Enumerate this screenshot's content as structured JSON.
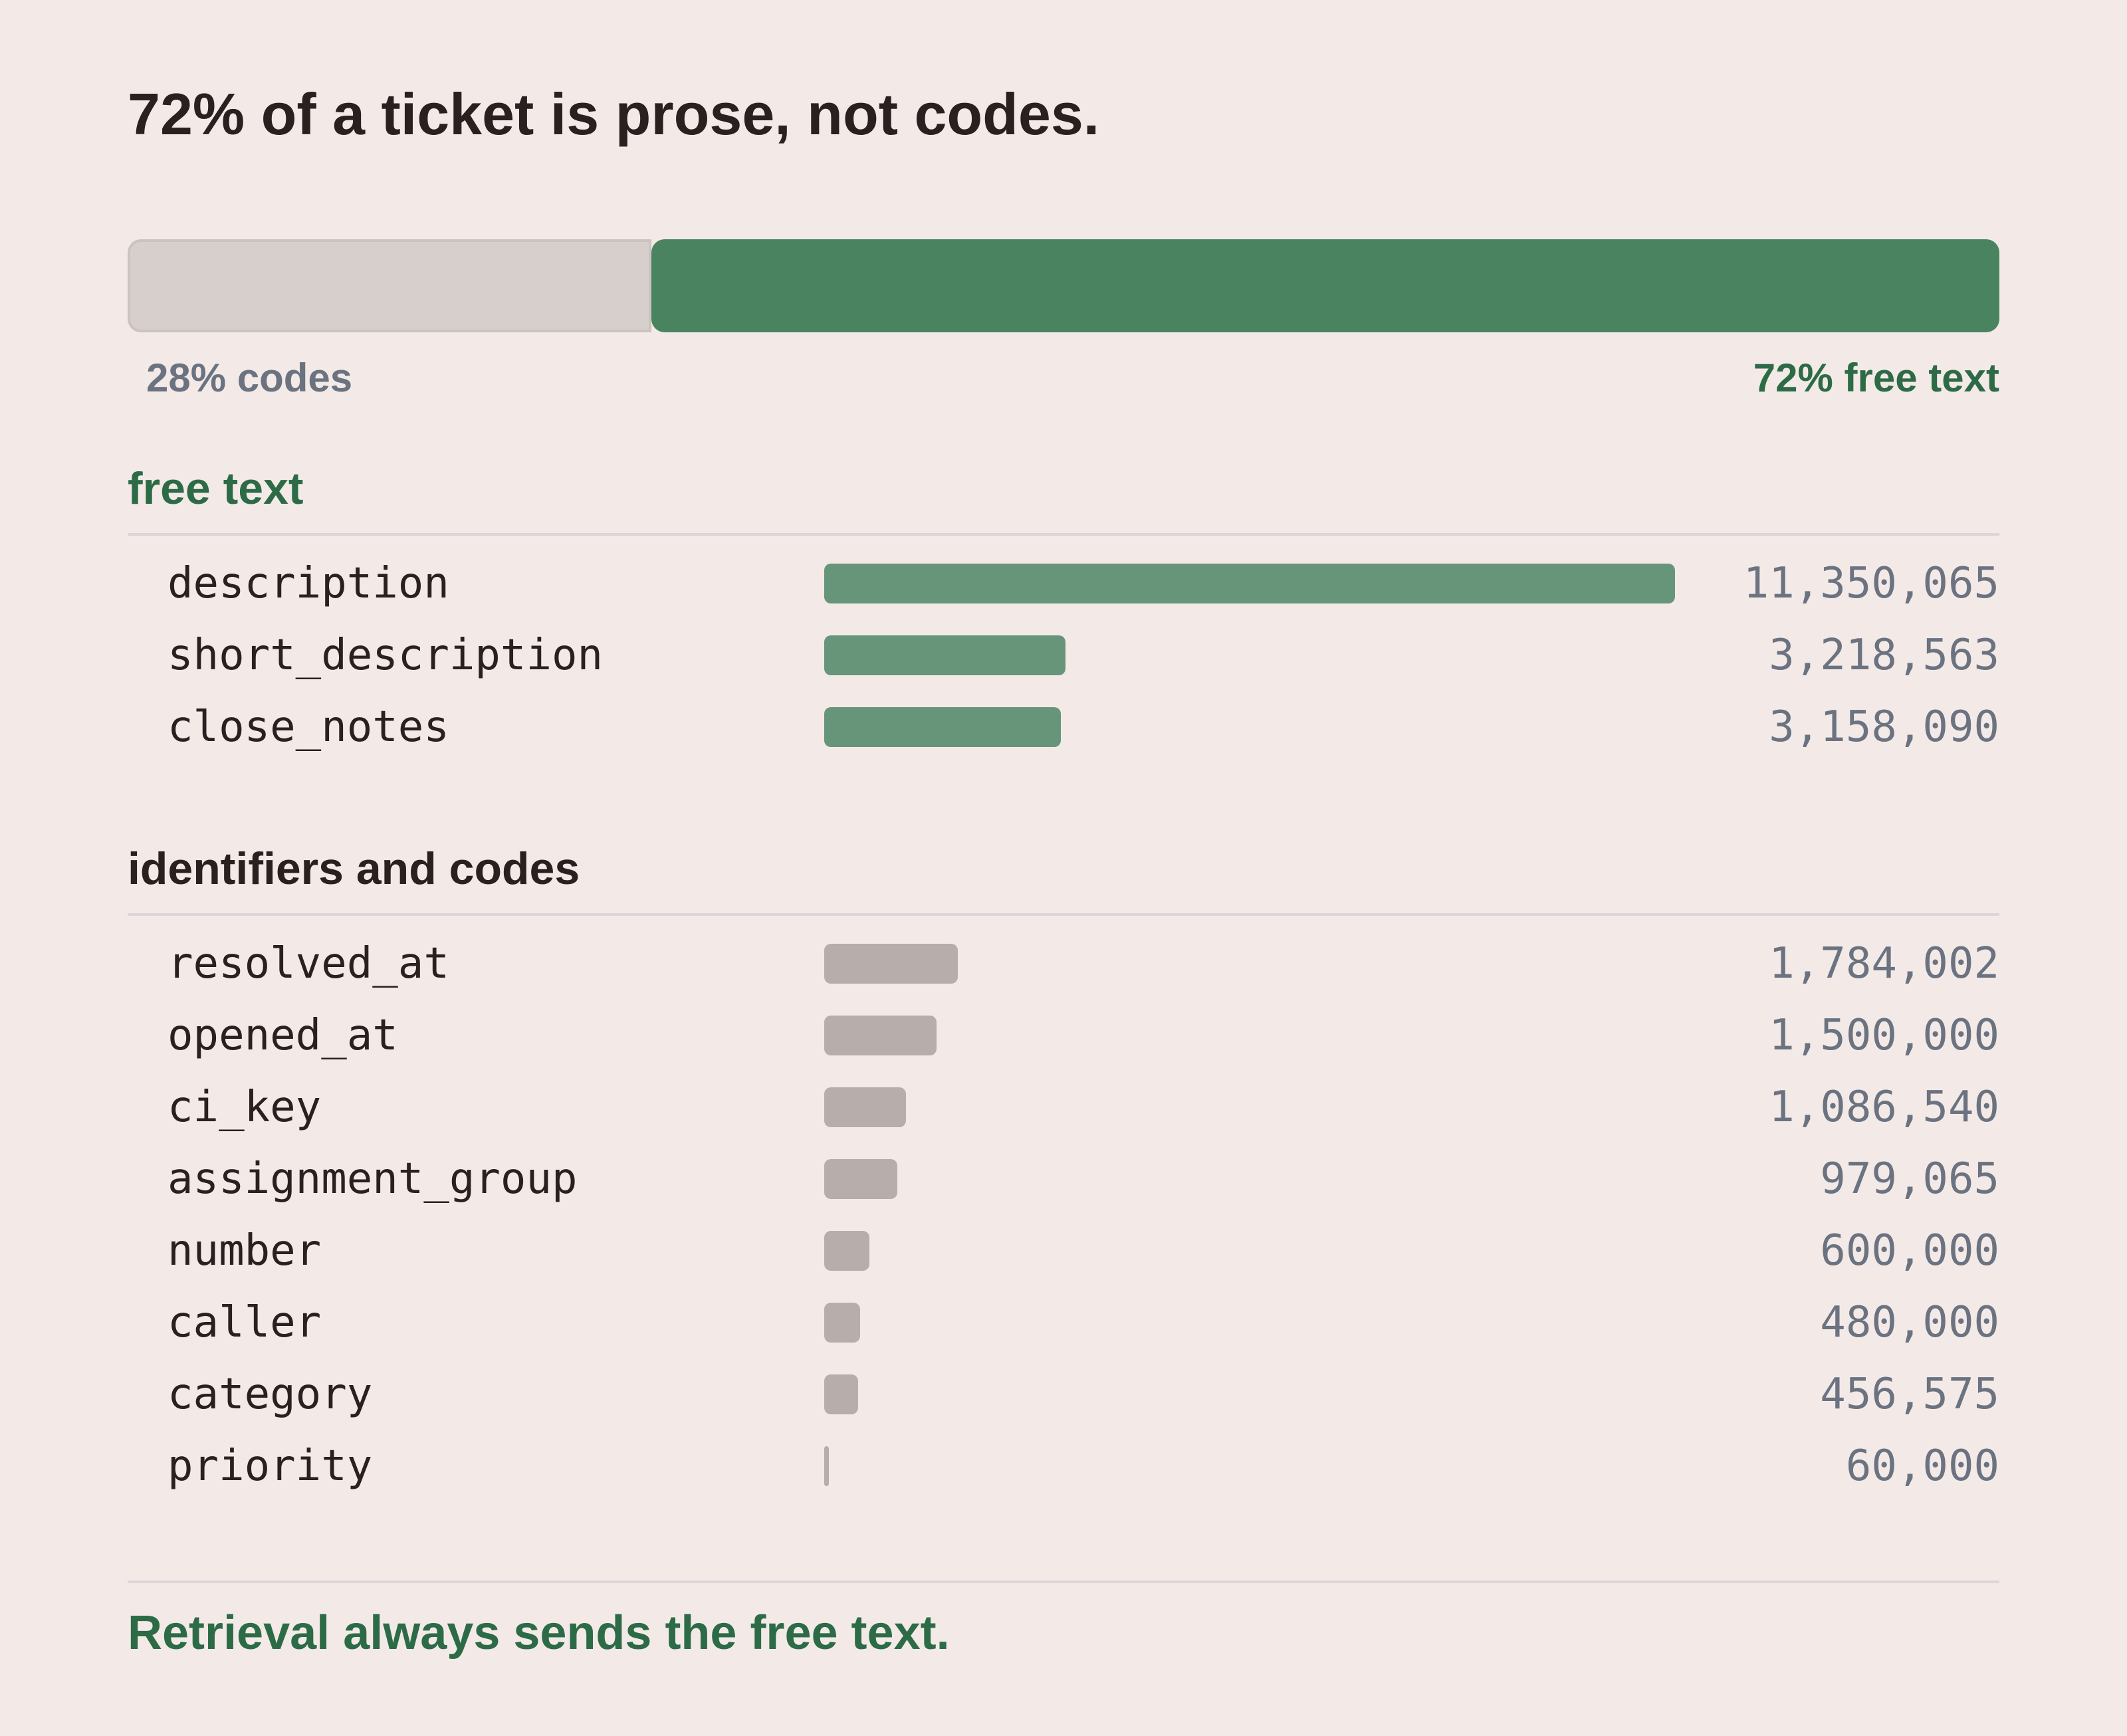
{
  "title": "72% of a ticket is prose, not codes.",
  "footer": "Retrieval always sends the free text.",
  "colors": {
    "background": "#f3eae8",
    "free_text_accent": "#2d6b47",
    "free_text_bar": "#679579",
    "free_text_split": "#4a8360",
    "codes_bar": "#b7adab",
    "codes_split": "#d7cfcc",
    "value_text": "#6b7280"
  },
  "chart_data": [
    {
      "type": "bar",
      "orientation": "horizontal-stacked",
      "categories": [
        "codes",
        "free text"
      ],
      "values": [
        28,
        72
      ],
      "unit": "%",
      "labels": [
        "28% codes",
        "72% free text"
      ]
    },
    {
      "type": "bar",
      "orientation": "horizontal",
      "groups": [
        {
          "name": "free text",
          "categories": [
            "description",
            "short_description",
            "close_notes"
          ],
          "values": [
            11350065,
            3218563,
            3158090
          ],
          "value_labels": [
            "11,350,065",
            "3,218,563",
            "3,158,090"
          ]
        },
        {
          "name": "identifiers and codes",
          "categories": [
            "resolved_at",
            "opened_at",
            "ci_key",
            "assignment_group",
            "number",
            "caller",
            "category",
            "priority"
          ],
          "values": [
            1784002,
            1500000,
            1086540,
            979065,
            600000,
            480000,
            456575,
            60000
          ],
          "value_labels": [
            "1,784,002",
            "1,500,000",
            "1,086,540",
            "979,065",
            "600,000",
            "480,000",
            "456,575",
            "60,000"
          ]
        }
      ],
      "xlim": [
        0,
        11350065
      ],
      "grid": false
    }
  ]
}
